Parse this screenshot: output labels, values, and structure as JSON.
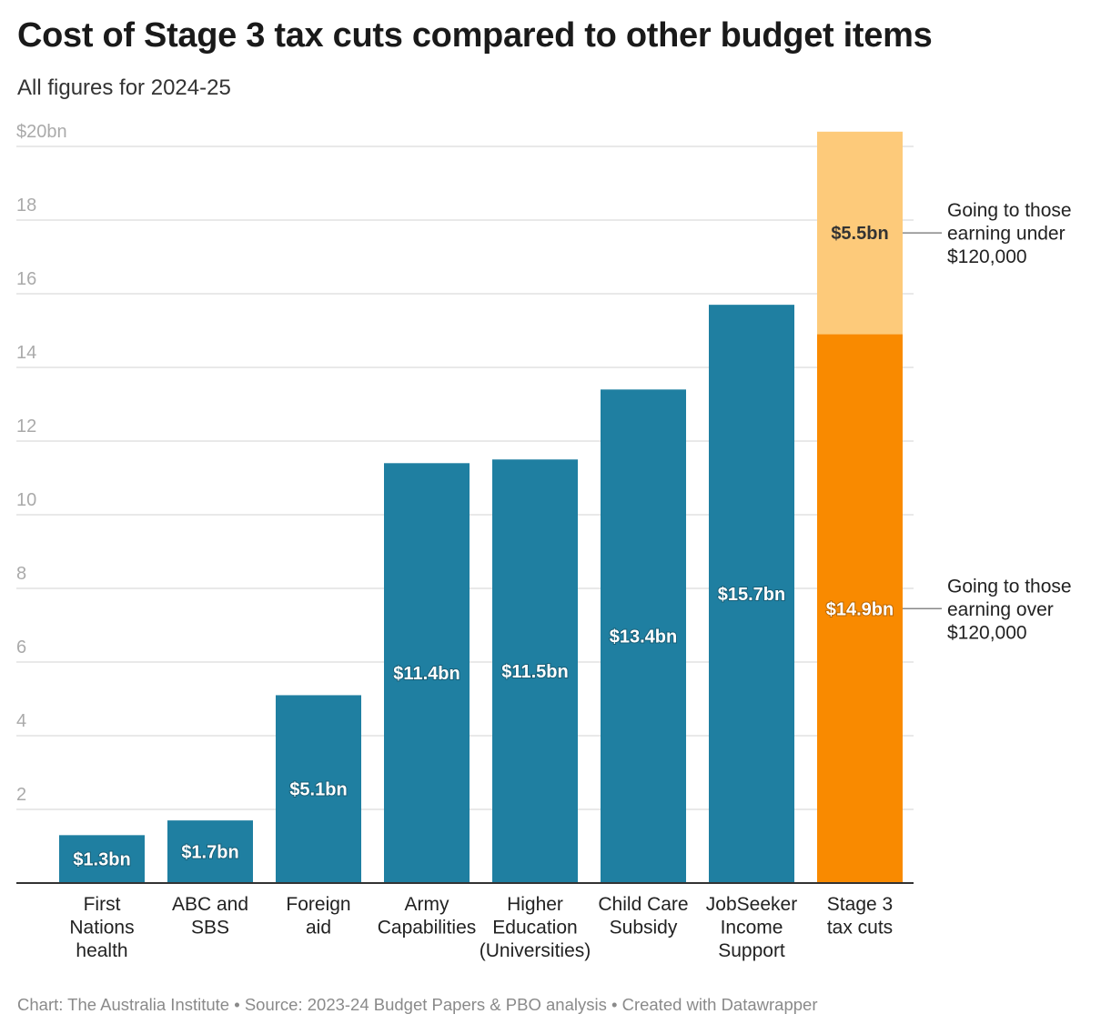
{
  "title": "Cost of Stage 3 tax cuts compared to other budget items",
  "subtitle": "All figures for 2024-25",
  "footer": "Chart: The Australia Institute • Source: 2023-24 Budget Papers & PBO analysis • Created with Datawrapper",
  "chart_data": {
    "type": "bar",
    "stacked": true,
    "categories": [
      [
        "First",
        "Nations",
        "health"
      ],
      [
        "ABC and",
        "SBS"
      ],
      [
        "Foreign",
        "aid"
      ],
      [
        "Army",
        "Capabilities"
      ],
      [
        "Higher",
        "Education",
        "(Universities)"
      ],
      [
        "Child Care",
        "Subsidy"
      ],
      [
        "JobSeeker",
        "Income",
        "Support"
      ],
      [
        "Stage 3",
        "tax cuts"
      ]
    ],
    "series": [
      {
        "values": [
          1.3,
          1.7,
          5.1,
          11.4,
          11.5,
          13.4,
          15.7,
          14.9
        ],
        "labels": [
          "$1.3bn",
          "$1.7bn",
          "$5.1bn",
          "$11.4bn",
          "$11.5bn",
          "$13.4bn",
          "$15.7bn",
          "$14.9bn"
        ],
        "colors": [
          "#1f7fa1",
          "#1f7fa1",
          "#1f7fa1",
          "#1f7fa1",
          "#1f7fa1",
          "#1f7fa1",
          "#1f7fa1",
          "#f98a00"
        ]
      },
      {
        "values": [
          0,
          0,
          0,
          0,
          0,
          0,
          0,
          5.5
        ],
        "labels": [
          "",
          "",
          "",
          "",
          "",
          "",
          "",
          "$5.5bn"
        ],
        "colors": [
          "#fdca7a",
          "#fdca7a",
          "#fdca7a",
          "#fdca7a",
          "#fdca7a",
          "#fdca7a",
          "#fdca7a",
          "#fdca7a"
        ]
      }
    ],
    "annotations": [
      {
        "category_index": 7,
        "series_index": 1,
        "lines": [
          "Going to those",
          "earning under",
          "$120,000"
        ]
      },
      {
        "category_index": 7,
        "series_index": 0,
        "lines": [
          "Going to those",
          "earning over",
          "$120,000"
        ]
      }
    ],
    "y_ticks": [
      2,
      4,
      6,
      8,
      10,
      12,
      14,
      16,
      18,
      20
    ],
    "y_tick_labels": [
      "2",
      "4",
      "6",
      "8",
      "10",
      "12",
      "14",
      "16",
      "18",
      "$20bn"
    ],
    "ylim": [
      0,
      20
    ],
    "grid": true,
    "xlabel": "",
    "ylabel": ""
  }
}
